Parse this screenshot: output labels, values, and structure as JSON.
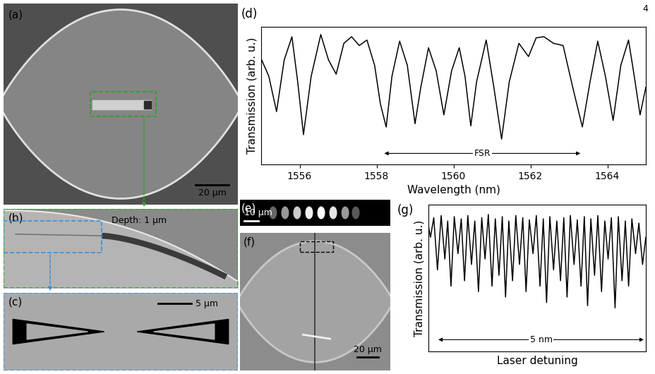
{
  "page_number": "4",
  "panels": {
    "a": {
      "label": "(a)",
      "scale_bar": "20 µm"
    },
    "b": {
      "label": "(b)",
      "annotation": "Depth: 1 µm"
    },
    "c": {
      "label": "(c)",
      "scale_bar": "5 µm"
    },
    "e": {
      "label": "(e)",
      "scale_bar": "10 µm"
    },
    "f": {
      "label": "(f)",
      "scale_bar": "20 µm"
    }
  },
  "chart_data": [
    {
      "type": "line",
      "panel_label": "(d)",
      "x_label": "Wavelength (nm)",
      "y_label": "Transmission (arb. u.)",
      "color": "#000000",
      "x": [
        1555.0,
        1555.2,
        1555.4,
        1555.6,
        1555.8,
        1555.95,
        1556.1,
        1556.3,
        1556.55,
        1556.75,
        1556.95,
        1557.15,
        1557.35,
        1557.55,
        1557.75,
        1557.95,
        1558.1,
        1558.25,
        1558.4,
        1558.6,
        1558.8,
        1559.0,
        1559.15,
        1559.35,
        1559.55,
        1559.75,
        1559.95,
        1560.15,
        1560.3,
        1560.45,
        1560.6,
        1560.85,
        1561.05,
        1561.25,
        1561.45,
        1561.7,
        1561.95,
        1562.15,
        1562.35,
        1562.6,
        1562.85,
        1563.1,
        1563.35,
        1563.55,
        1563.75,
        1563.95,
        1564.15,
        1564.35,
        1564.55,
        1564.7,
        1564.85,
        1565.0
      ],
      "values": [
        0.76,
        0.6,
        0.28,
        0.75,
        0.96,
        0.55,
        0.07,
        0.6,
        0.98,
        0.75,
        0.62,
        0.9,
        0.96,
        0.88,
        0.93,
        0.7,
        0.35,
        0.14,
        0.6,
        0.92,
        0.7,
        0.17,
        0.5,
        0.86,
        0.65,
        0.25,
        0.65,
        0.86,
        0.6,
        0.15,
        0.55,
        0.93,
        0.5,
        0.03,
        0.55,
        0.9,
        0.78,
        0.95,
        0.96,
        0.9,
        0.88,
        0.5,
        0.14,
        0.55,
        0.92,
        0.6,
        0.2,
        0.7,
        0.93,
        0.6,
        0.25,
        0.5
      ],
      "xlim": [
        1555,
        1565
      ],
      "xticks": [
        1556,
        1558,
        1560,
        1562,
        1564
      ],
      "ylim": [
        -0.2,
        1.05
      ],
      "tick_labels": "x",
      "annotation": {
        "text": "FSR",
        "x_from": 1558.2,
        "x_to": 1563.3
      }
    },
    {
      "type": "line",
      "panel_label": "(g)",
      "x_label": "Laser detuning",
      "y_label": "Transmission (arb. u.)",
      "color": "#000000",
      "x": [
        0.0,
        0.05,
        0.13,
        0.22,
        0.31,
        0.4,
        0.47,
        0.55,
        0.63,
        0.72,
        0.8,
        0.88,
        0.96,
        1.05,
        1.13,
        1.22,
        1.3,
        1.38,
        1.46,
        1.55,
        1.63,
        1.72,
        1.8,
        1.88,
        1.96,
        2.05,
        2.13,
        2.22,
        2.3,
        2.38,
        2.46,
        2.55,
        2.63,
        2.72,
        2.8,
        2.88,
        2.96,
        3.05,
        3.13,
        3.22,
        3.3,
        3.38,
        3.46,
        3.55,
        3.63,
        3.72,
        3.8,
        3.88,
        3.96,
        4.05,
        4.13,
        4.22,
        4.3,
        4.38,
        4.46,
        4.55,
        4.63,
        4.72,
        4.8,
        4.88,
        4.96,
        5.05,
        5.13,
        5.22,
        5.3
      ],
      "values": [
        0.85,
        0.75,
        0.93,
        0.45,
        0.95,
        0.55,
        0.9,
        0.3,
        0.94,
        0.6,
        0.92,
        0.35,
        0.95,
        0.5,
        0.9,
        0.25,
        0.93,
        0.55,
        0.96,
        0.3,
        0.92,
        0.4,
        0.94,
        0.2,
        0.9,
        0.35,
        0.95,
        0.5,
        0.93,
        0.25,
        0.91,
        0.6,
        0.95,
        0.3,
        0.92,
        0.15,
        0.94,
        0.45,
        0.9,
        0.35,
        0.93,
        0.2,
        0.95,
        0.5,
        0.91,
        0.3,
        0.94,
        0.12,
        0.92,
        0.4,
        0.95,
        0.25,
        0.9,
        0.55,
        0.93,
        0.1,
        0.94,
        0.35,
        0.9,
        0.3,
        0.92,
        0.6,
        0.88,
        0.5,
        0.75
      ],
      "xlim": [
        0,
        5.3
      ],
      "ylim": [
        -0.3,
        1.05
      ],
      "tick_labels": false,
      "annotation": {
        "text": "5 nm",
        "x_from": 0.24,
        "x_to": 5.25
      }
    }
  ]
}
